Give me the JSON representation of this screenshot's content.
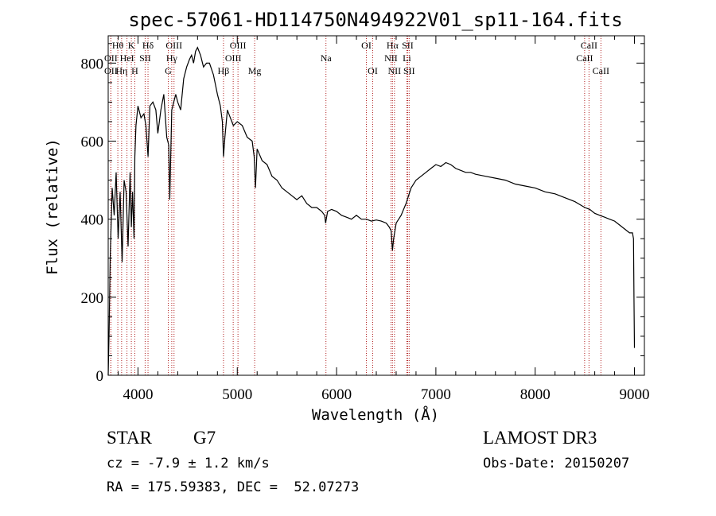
{
  "chart_data": {
    "type": "line",
    "title": "spec-57061-HD114750N494922V01_sp11-164.fits",
    "xlabel": "Wavelength (Å)",
    "ylabel": "Flux (relative)",
    "xlim": [
      3700,
      9100
    ],
    "ylim": [
      0,
      870
    ],
    "xticks": [
      4000,
      5000,
      6000,
      7000,
      8000,
      9000
    ],
    "yticks": [
      0,
      200,
      400,
      600,
      800
    ],
    "series": [
      {
        "name": "spectrum",
        "x": [
          3700,
          3710,
          3720,
          3740,
          3760,
          3780,
          3800,
          3820,
          3840,
          3860,
          3880,
          3900,
          3920,
          3933,
          3945,
          3960,
          3968,
          3980,
          4000,
          4030,
          4060,
          4080,
          4101,
          4120,
          4150,
          4180,
          4200,
          4230,
          4260,
          4290,
          4310,
          4320,
          4340,
          4360,
          4380,
          4400,
          4430,
          4460,
          4490,
          4520,
          4540,
          4560,
          4580,
          4600,
          4630,
          4660,
          4690,
          4720,
          4760,
          4800,
          4830,
          4850,
          4861,
          4875,
          4900,
          4930,
          4960,
          5000,
          5050,
          5100,
          5150,
          5170,
          5183,
          5200,
          5250,
          5300,
          5350,
          5400,
          5450,
          5500,
          5550,
          5600,
          5650,
          5700,
          5750,
          5800,
          5850,
          5880,
          5890,
          5896,
          5910,
          5950,
          6000,
          6050,
          6100,
          6150,
          6200,
          6250,
          6300,
          6350,
          6400,
          6450,
          6500,
          6530,
          6550,
          6563,
          6575,
          6600,
          6650,
          6700,
          6750,
          6800,
          6850,
          6900,
          6950,
          7000,
          7050,
          7100,
          7150,
          7200,
          7250,
          7300,
          7350,
          7400,
          7500,
          7600,
          7700,
          7800,
          7900,
          8000,
          8100,
          8200,
          8300,
          8400,
          8500,
          8550,
          8600,
          8650,
          8700,
          8750,
          8800,
          8850,
          8900,
          8950,
          8980,
          8990,
          8995,
          9000
        ],
        "y": [
          0,
          120,
          300,
          480,
          410,
          520,
          350,
          470,
          290,
          500,
          470,
          330,
          520,
          380,
          470,
          350,
          560,
          640,
          690,
          660,
          670,
          640,
          560,
          690,
          700,
          680,
          620,
          680,
          720,
          610,
          590,
          450,
          680,
          700,
          720,
          700,
          680,
          760,
          790,
          810,
          820,
          800,
          830,
          840,
          820,
          790,
          800,
          800,
          770,
          720,
          690,
          650,
          560,
          610,
          680,
          660,
          640,
          650,
          640,
          610,
          600,
          560,
          480,
          580,
          550,
          540,
          510,
          500,
          480,
          470,
          460,
          450,
          460,
          440,
          430,
          430,
          420,
          410,
          390,
          400,
          420,
          425,
          420,
          410,
          405,
          400,
          410,
          400,
          400,
          395,
          398,
          395,
          390,
          380,
          370,
          320,
          350,
          390,
          410,
          440,
          480,
          500,
          510,
          520,
          530,
          540,
          535,
          545,
          540,
          530,
          525,
          520,
          520,
          515,
          510,
          505,
          500,
          490,
          485,
          480,
          470,
          465,
          455,
          445,
          430,
          425,
          415,
          410,
          405,
          400,
          395,
          385,
          375,
          365,
          365,
          350,
          200,
          70
        ]
      }
    ],
    "lines": [
      {
        "name": "H-theta",
        "label": "Hθ",
        "wl": 3797,
        "row": 1
      },
      {
        "name": "O-II",
        "label": "OII",
        "wl": 3727,
        "row": 2
      },
      {
        "name": "O-II-b",
        "label": "OII",
        "wl": 3727,
        "row": 3
      },
      {
        "name": "H-eta",
        "label": "Hη",
        "wl": 3835,
        "row": 3
      },
      {
        "name": "K",
        "label": "K",
        "wl": 3933,
        "row": 1
      },
      {
        "name": "H",
        "label": "H",
        "wl": 3968,
        "row": 3
      },
      {
        "name": "He-I",
        "label": "HeI",
        "wl": 3889,
        "row": 2
      },
      {
        "name": "S-II",
        "label": "SII",
        "wl": 4072,
        "row": 2
      },
      {
        "name": "H-delta",
        "label": "Hδ",
        "wl": 4101,
        "row": 1
      },
      {
        "name": "O-III",
        "label": "OIII",
        "wl": 4363,
        "row": 1
      },
      {
        "name": "H-gamma",
        "label": "Hγ",
        "wl": 4340,
        "row": 2
      },
      {
        "name": "G-band",
        "label": "G",
        "wl": 4305,
        "row": 3
      },
      {
        "name": "H-beta",
        "label": "Hβ",
        "wl": 4861,
        "row": 3
      },
      {
        "name": "O-III-5007",
        "label": "OIII",
        "wl": 5007,
        "row": 1
      },
      {
        "name": "O-III-4959",
        "label": "OIII",
        "wl": 4959,
        "row": 2
      },
      {
        "name": "Mg",
        "label": "Mg",
        "wl": 5175,
        "row": 3
      },
      {
        "name": "Na",
        "label": "Na",
        "wl": 5893,
        "row": 2
      },
      {
        "name": "O-I-6300",
        "label": "OI",
        "wl": 6300,
        "row": 1
      },
      {
        "name": "O-I-6364",
        "label": "OI",
        "wl": 6364,
        "row": 3
      },
      {
        "name": "H-alpha",
        "label": "Hα",
        "wl": 6563,
        "row": 1
      },
      {
        "name": "S-II-6716",
        "label": "SII",
        "wl": 6716,
        "row": 1
      },
      {
        "name": "N-II",
        "label": "NII",
        "wl": 6548,
        "row": 2
      },
      {
        "name": "Li",
        "label": "Li",
        "wl": 6708,
        "row": 2
      },
      {
        "name": "N-II-6583",
        "label": "NII",
        "wl": 6583,
        "row": 3
      },
      {
        "name": "S-II-6731",
        "label": "SII",
        "wl": 6731,
        "row": 3
      },
      {
        "name": "Ca-II-8542",
        "label": "CaII",
        "wl": 8542,
        "row": 1
      },
      {
        "name": "Ca-II-8498",
        "label": "CaII",
        "wl": 8498,
        "row": 2
      },
      {
        "name": "Ca-II-8662",
        "label": "CaII",
        "wl": 8662,
        "row": 3
      }
    ]
  },
  "info": {
    "class": "STAR",
    "subclass": "G7",
    "survey": "LAMOST DR3",
    "cz": "cz = -7.9 ± 1.2 km/s",
    "obs_date": "Obs-Date: 20150207",
    "radec": "RA = 175.59383, DEC =  52.07273"
  },
  "colors": {
    "line_marker": "#b22222",
    "axis": "#000000",
    "spectrum": "#000000"
  }
}
